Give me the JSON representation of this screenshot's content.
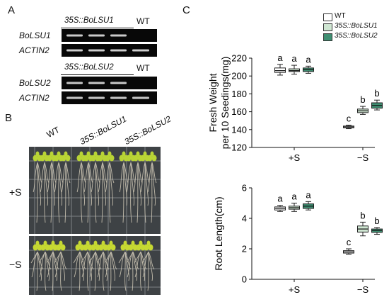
{
  "panel_a": {
    "letter": "A",
    "blot1": {
      "construct": "35S::BoLSU1",
      "wt": "WT",
      "gene": "BoLSU1",
      "control": "ACTIN2"
    },
    "blot2": {
      "construct": "35S::BoLSU2",
      "wt": "WT",
      "gene": "BoLSU2",
      "control": "ACTIN2"
    }
  },
  "panel_b": {
    "letter": "B",
    "columns": [
      "WT",
      "35S::BoLSU1",
      "35S::BoLSU2"
    ],
    "rows": [
      "+S",
      "−S"
    ]
  },
  "panel_c": {
    "letter": "C",
    "legend": [
      "WT",
      "35S::BoLSU1",
      "35S::BoLSU2"
    ]
  },
  "colors": {
    "wt": "#ffffff",
    "lsu1": "#cfe6d2",
    "lsu2": "#3f8f72"
  },
  "chart_data": [
    {
      "type": "box",
      "ylabel": "Fresh Weight\nper 10 Seedings(mg)",
      "ylim": [
        120,
        220
      ],
      "yticks": [
        120,
        140,
        160,
        180,
        200,
        220
      ],
      "categories": [
        "+S",
        "−S"
      ],
      "series": [
        {
          "name": "WT",
          "boxes": [
            {
              "min": 201,
              "q1": 204,
              "median": 206,
              "q3": 209,
              "max": 213,
              "letter": "a"
            },
            {
              "min": 141,
              "q1": 142,
              "median": 143,
              "q3": 144,
              "max": 145,
              "letter": "c"
            }
          ]
        },
        {
          "name": "35S::BoLSU1",
          "boxes": [
            {
              "min": 202,
              "q1": 205,
              "median": 206,
              "q3": 208,
              "max": 212,
              "letter": "a"
            },
            {
              "min": 157,
              "q1": 159,
              "median": 161,
              "q3": 163,
              "max": 166,
              "letter": "b"
            }
          ]
        },
        {
          "name": "35S::BoLSU2",
          "boxes": [
            {
              "min": 203,
              "q1": 205,
              "median": 207,
              "q3": 209,
              "max": 211,
              "letter": "a"
            },
            {
              "min": 162,
              "q1": 164,
              "median": 167,
              "q3": 170,
              "max": 173,
              "letter": "b"
            }
          ]
        }
      ]
    },
    {
      "type": "box",
      "ylabel": "Root Length(cm)",
      "ylim": [
        0,
        6
      ],
      "yticks": [
        0,
        2,
        4,
        6
      ],
      "categories": [
        "+S",
        "−S"
      ],
      "series": [
        {
          "name": "WT",
          "boxes": [
            {
              "min": 4.45,
              "q1": 4.55,
              "median": 4.65,
              "q3": 4.75,
              "max": 4.85,
              "letter": "a"
            },
            {
              "min": 1.65,
              "q1": 1.72,
              "median": 1.8,
              "q3": 1.88,
              "max": 2.0,
              "letter": "c"
            }
          ]
        },
        {
          "name": "35S::BoLSU1",
          "boxes": [
            {
              "min": 4.45,
              "q1": 4.6,
              "median": 4.7,
              "q3": 4.8,
              "max": 5.0,
              "letter": "a"
            },
            {
              "min": 2.85,
              "q1": 3.1,
              "median": 3.3,
              "q3": 3.5,
              "max": 3.75,
              "letter": "b"
            }
          ]
        },
        {
          "name": "35S::BoLSU2",
          "boxes": [
            {
              "min": 4.55,
              "q1": 4.65,
              "median": 4.8,
              "q3": 4.95,
              "max": 5.1,
              "letter": "a"
            },
            {
              "min": 2.95,
              "q1": 3.08,
              "median": 3.2,
              "q3": 3.3,
              "max": 3.4,
              "letter": "b"
            }
          ]
        }
      ]
    }
  ]
}
